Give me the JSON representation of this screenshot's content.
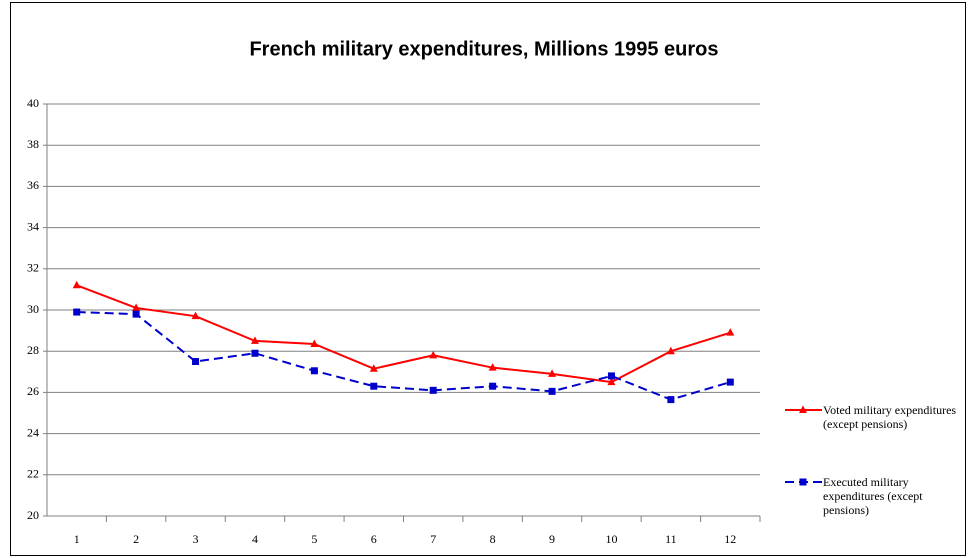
{
  "chart_data": {
    "type": "line",
    "title": "French military expenditures, Millions 1995 euros",
    "categories": [
      "1",
      "2",
      "3",
      "4",
      "5",
      "6",
      "7",
      "8",
      "9",
      "10",
      "11",
      "12"
    ],
    "series": [
      {
        "name": "Voted military expenditures (except pensions)",
        "color": "#ff0000",
        "marker": "triangle",
        "dash": "solid",
        "values": [
          31.2,
          30.1,
          29.7,
          28.5,
          28.35,
          27.15,
          27.8,
          27.2,
          26.9,
          26.5,
          28.0,
          28.9
        ]
      },
      {
        "name": "Executed military expenditures (except pensions)",
        "color": "#0000cc",
        "marker": "square",
        "dash": "dashed",
        "values": [
          29.9,
          29.8,
          27.5,
          27.9,
          27.05,
          26.3,
          26.1,
          26.3,
          26.05,
          26.8,
          25.65,
          26.5
        ]
      }
    ],
    "ylim": [
      20,
      40
    ],
    "yticks": [
      20,
      22,
      24,
      26,
      28,
      30,
      32,
      34,
      36,
      38,
      40
    ],
    "grid": true,
    "legend": "right"
  }
}
